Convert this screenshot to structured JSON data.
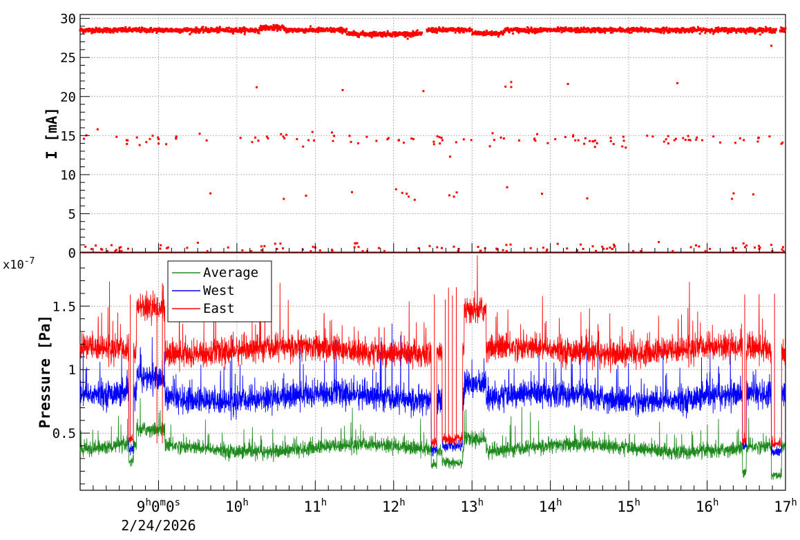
{
  "chart_data": [
    {
      "type": "scatter",
      "panel": "top",
      "ylabel": "I [mA]",
      "ylim": [
        0,
        30.5
      ],
      "yticks": [
        "0",
        "5",
        "10",
        "15",
        "20",
        "25",
        "30"
      ],
      "grid": true,
      "x_range_hours": [
        8.0,
        17.0
      ],
      "series": [
        {
          "color": "#ff0000",
          "clusters": [
            {
              "level": 28.5,
              "description_values": "main beam current ~28-29 mA"
            },
            {
              "level": 14.5,
              "description_values": "scattered points ~14-15 mA"
            },
            {
              "level": 7.3,
              "description_values": "scattered points ~7 mA"
            },
            {
              "level": 0.6,
              "description_values": "scattered points near 0-1 mA"
            },
            {
              "level": 21.3,
              "description_values": "few points ~21 mA"
            }
          ],
          "dips": [
            {
              "x": 12.38,
              "y": 20.7
            },
            {
              "x": 12.72,
              "y": 12.3
            },
            {
              "x": 16.82,
              "y": 26.5
            }
          ],
          "gap_hours": [
            [
              12.36,
              12.42
            ],
            [
              16.88,
              16.93
            ]
          ]
        }
      ]
    },
    {
      "type": "line",
      "panel": "bottom",
      "ylabel": "Pressure [Pa]",
      "y_multiplier": "x10",
      "y_multiplier_exp": "-7",
      "ylim": [
        0.05,
        1.92
      ],
      "yticks": [
        "0.5",
        "1",
        "1.5"
      ],
      "grid": true,
      "legend_placement": "top-left",
      "xtick_labels": [
        {
          "hour": 9,
          "base": "9",
          "sup1": "h",
          "mid1": "0",
          "sup2": "m",
          "mid2": "0",
          "sup3": "s",
          "sub": "2/24/2026"
        },
        {
          "hour": 10,
          "base": "10",
          "sup1": "h"
        },
        {
          "hour": 11,
          "base": "11",
          "sup1": "h"
        },
        {
          "hour": 12,
          "base": "12",
          "sup1": "h"
        },
        {
          "hour": 13,
          "base": "13",
          "sup1": "h"
        },
        {
          "hour": 14,
          "base": "14",
          "sup1": "h"
        },
        {
          "hour": 15,
          "base": "15",
          "sup1": "h"
        },
        {
          "hour": 16,
          "base": "16",
          "sup1": "h"
        },
        {
          "hour": 17,
          "base": "17",
          "sup1": "h"
        }
      ],
      "series": [
        {
          "name": "Average",
          "color": "#1e8a1e",
          "typical_value": 0.38,
          "noise": 0.05
        },
        {
          "name": "West",
          "color": "#0000ff",
          "typical_value": 0.78,
          "noise": 0.09
        },
        {
          "name": "East",
          "color": "#ff0000",
          "typical_value": 1.15,
          "noise": 0.09
        }
      ],
      "events": [
        {
          "start": 8.62,
          "end": 8.68,
          "average": 0.28,
          "west": 0.38,
          "east": 0.45
        },
        {
          "start": 12.48,
          "end": 12.55,
          "average": 0.25,
          "west": 0.36,
          "east": 0.42
        },
        {
          "start": 12.62,
          "end": 12.88,
          "average": 0.27,
          "west": 0.4,
          "east": 0.45
        },
        {
          "start": 16.45,
          "end": 16.5,
          "average": 0.2,
          "west": 0.4,
          "east": 0.45
        },
        {
          "start": 16.82,
          "end": 16.95,
          "average": 0.17,
          "west": 0.35,
          "east": 0.42
        }
      ],
      "elevated_segments": [
        {
          "start": 8.72,
          "end": 9.08,
          "average": 0.5,
          "west": 0.92,
          "east": 1.5
        },
        {
          "start": 12.9,
          "end": 13.18,
          "average": 0.48,
          "west": 0.9,
          "east": 1.45
        }
      ]
    }
  ]
}
